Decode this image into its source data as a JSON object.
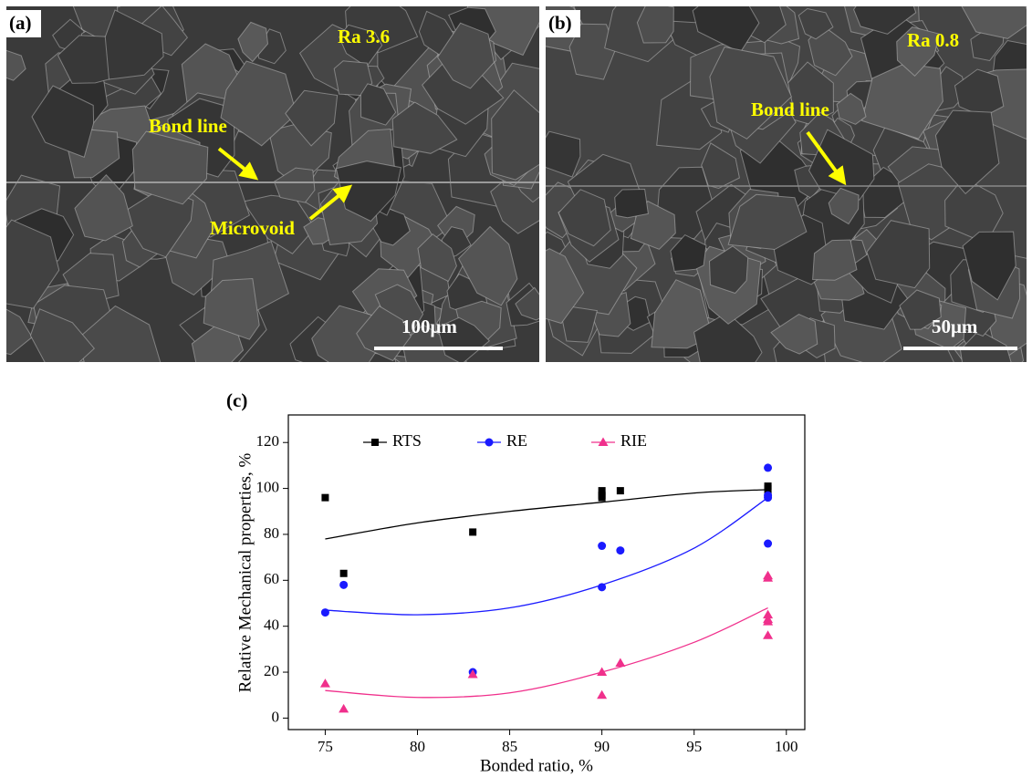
{
  "panels": [
    {
      "label": "(a)",
      "roughness": "Ra 3.6",
      "bond_line": "Bond line",
      "microvoid": "Microvoid",
      "scale_bar": "100μm"
    },
    {
      "label": "(b)",
      "roughness": "Ra 0.8",
      "bond_line": "Bond line",
      "scale_bar": "50μm"
    }
  ],
  "chart_data": {
    "type": "scatter",
    "panel_label": "(c)",
    "x_label": "Bonded ratio, %",
    "y_label": "Relative Mechanical properties, %",
    "xlim": [
      73,
      101
    ],
    "ylim": [
      -5,
      132
    ],
    "xticks": [
      75,
      80,
      85,
      90,
      95,
      100
    ],
    "yticks": [
      0,
      20,
      40,
      60,
      80,
      100,
      120
    ],
    "trend_x": [
      75,
      80,
      85,
      90,
      95,
      99
    ],
    "series": [
      {
        "name": "RTS",
        "color": "#000000",
        "marker": "square",
        "x": [
          75,
          76,
          83,
          90,
          90,
          90,
          91,
          99,
          99,
          99
        ],
        "values": [
          96,
          63,
          81,
          99,
          97,
          96,
          99,
          101,
          100,
          97
        ],
        "trend": [
          78,
          85,
          90,
          94,
          98,
          99.5
        ]
      },
      {
        "name": "RE",
        "color": "#1a1aff",
        "marker": "circle",
        "x": [
          75,
          76,
          83,
          90,
          90,
          91,
          99,
          99,
          99,
          99
        ],
        "values": [
          46,
          58,
          20,
          75,
          57,
          73,
          109,
          97,
          96,
          76
        ],
        "trend": [
          47,
          45,
          48,
          58,
          74,
          96
        ]
      },
      {
        "name": "RIE",
        "color": "#f0308c",
        "marker": "triangle",
        "x": [
          75,
          76,
          83,
          90,
          90,
          91,
          99,
          99,
          99,
          99,
          99,
          99
        ],
        "values": [
          15,
          4,
          19,
          20,
          10,
          24,
          62,
          61,
          45,
          43,
          42,
          36
        ],
        "trend": [
          12,
          9,
          11,
          20,
          33,
          48
        ]
      }
    ]
  }
}
